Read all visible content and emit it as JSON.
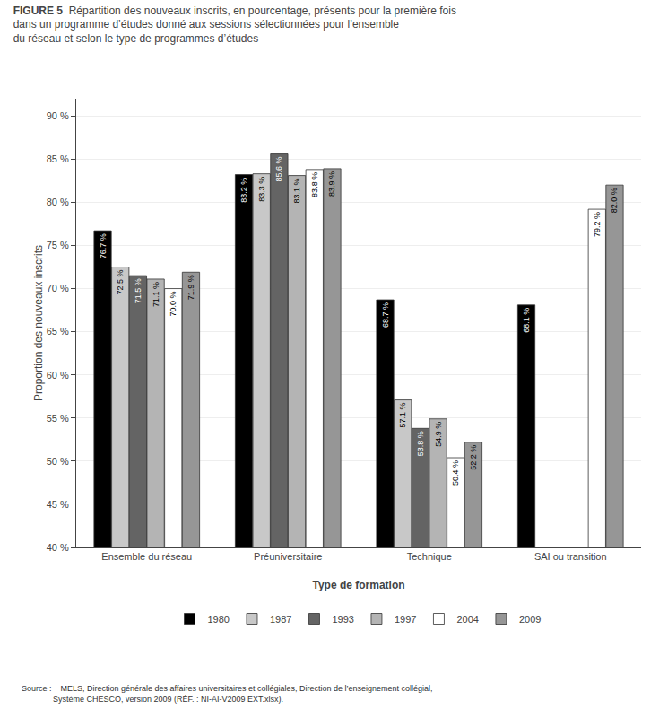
{
  "chart_data": {
    "type": "bar",
    "title": "FIGURE 5",
    "subtitle": "Répartition des nouveaux inscrits, en pourcentage, présents pour la première fois\ndans un programme d’études donné aux sessions sélectionnées pour l’ensemble\ndu réseau et selon le type de programmes d’études",
    "x_label": "Type de formation",
    "y_label": "Proportion des nouveaux inscrits",
    "categories": [
      "Ensemble du réseau",
      "Préuniversitaire",
      "Technique",
      "SAI ou transition"
    ],
    "series": [
      {
        "name": "1980",
        "color": "#000000",
        "values": [
          76.7,
          83.2,
          68.7,
          68.1
        ],
        "value_labels": [
          "76.7 %",
          "83.2 %",
          "68.7 %",
          "68.1 %"
        ]
      },
      {
        "name": "1987",
        "color": "#c8c8c8",
        "values": [
          72.5,
          83.3,
          57.1,
          null
        ],
        "value_labels": [
          "72.5 %",
          "83.3 %",
          "57.1 %",
          null
        ]
      },
      {
        "name": "1993",
        "color": "#646464",
        "values": [
          71.5,
          85.6,
          53.8,
          null
        ],
        "value_labels": [
          "71.5 %",
          "85.6 %",
          "53.8 %",
          null
        ]
      },
      {
        "name": "1997",
        "color": "#b4b4b4",
        "values": [
          71.1,
          83.1,
          54.9,
          null
        ],
        "value_labels": [
          "71.1 %",
          "83.1 %",
          "54.9 %",
          null
        ]
      },
      {
        "name": "2004",
        "color": "#ffffff",
        "values": [
          70.0,
          83.8,
          50.4,
          79.2
        ],
        "value_labels": [
          "70.0 %",
          "83.8 %",
          "50.4 %",
          "79.2 %"
        ]
      },
      {
        "name": "2009",
        "color": "#969696",
        "values": [
          71.9,
          83.9,
          52.2,
          82.0
        ],
        "value_labels": [
          "71.9 %",
          "83.9 %",
          "52.2 %",
          "82.0 %"
        ]
      }
    ],
    "ylim": [
      40,
      92
    ],
    "yticks": [
      {
        "value": 40,
        "label": "40 %"
      },
      {
        "value": 45,
        "label": "45 %"
      },
      {
        "value": 50,
        "label": "50 %"
      },
      {
        "value": 55,
        "label": "55 %"
      },
      {
        "value": 60,
        "label": "60 %"
      },
      {
        "value": 65,
        "label": "65 %"
      },
      {
        "value": 70,
        "label": "70 %"
      },
      {
        "value": 75,
        "label": "75 %"
      },
      {
        "value": 80,
        "label": "80 %"
      },
      {
        "value": 85,
        "label": "85 %"
      },
      {
        "value": 90,
        "label": "90 %"
      }
    ],
    "grid": true,
    "legend": "bottom",
    "data_labels": true,
    "annotations": [
      "Source :    MELS, Direction générale des affaires universitaires et collégiales, Direction de l’enseignement collégial,\n              Système CHESCO, version 2009 (RÉF. : NI-AI-V2009 EXT.xlsx)."
    ]
  }
}
